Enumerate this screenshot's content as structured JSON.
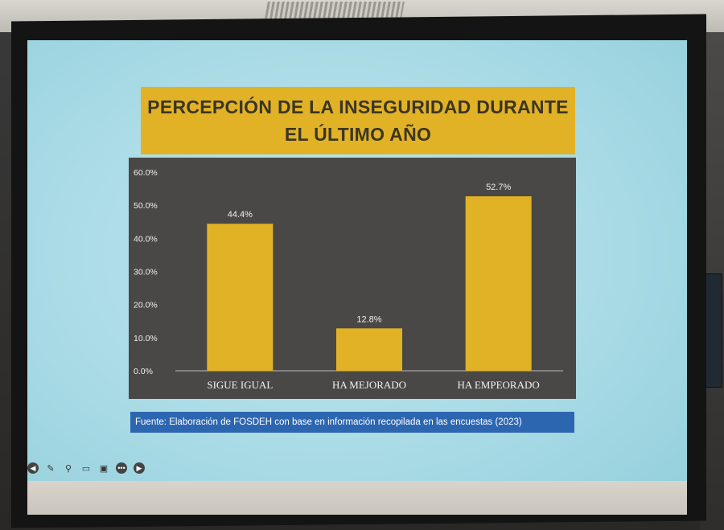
{
  "slide": {
    "title_line1": "PERCEPCIÓN DE LA INSEGURIDAD DURANTE",
    "title_line2": "EL ÚLTIMO AÑO",
    "source": "Fuente: Elaboración de FOSDEH con base en información recopilada en las encuestas (2023)"
  },
  "colors": {
    "title_bg": "#e2b226",
    "bar": "#e2b226",
    "chart_bg": "#494846",
    "source_bg": "#2d66b0"
  },
  "toolbar": {
    "icons": [
      "previous-icon",
      "pen-icon",
      "zoom-icon",
      "subtitles-icon",
      "camera-icon",
      "more-icon",
      "next-icon"
    ]
  },
  "chart_data": {
    "type": "bar",
    "categories": [
      "SIGUE IGUAL",
      "HA MEJORADO",
      "HA EMPEORADO"
    ],
    "values": [
      44.4,
      12.8,
      52.7
    ],
    "value_labels": [
      "44.4%",
      "12.8%",
      "52.7%"
    ],
    "y_ticks": [
      "0.0%",
      "10.0%",
      "20.0%",
      "30.0%",
      "40.0%",
      "50.0%",
      "60.0%"
    ],
    "ylim": [
      0,
      60
    ],
    "grid": false,
    "legend": "none"
  }
}
